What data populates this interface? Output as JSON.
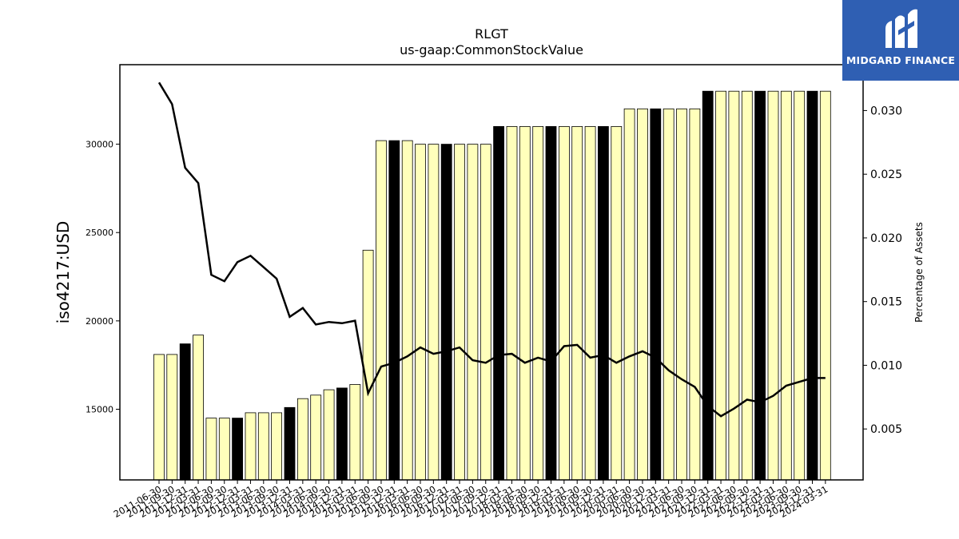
{
  "chart_data": {
    "type": "bar",
    "title": "RLGT",
    "subtitle": "us-gaap:CommonStockValue",
    "ylabel": "iso4217:USD",
    "y2label": "Percentage of Assets",
    "ylim": [
      11000,
      34500
    ],
    "y2lim": [
      0.001,
      0.0336
    ],
    "yticks": [
      15000,
      20000,
      25000,
      30000
    ],
    "y2ticks": [
      0.005,
      0.01,
      0.015,
      0.02,
      0.025,
      0.03
    ],
    "y2tick_labels": [
      "0.005",
      "0.010",
      "0.015",
      "0.020",
      "0.025",
      "0.030"
    ],
    "categories": [
      "2011-06-30",
      "2011-09-30",
      "2011-12-31",
      "2012-03-31",
      "2012-06-30",
      "2012-09-30",
      "2012-12-31",
      "2013-03-31",
      "2013-06-30",
      "2013-09-30",
      "2013-12-31",
      "2014-03-31",
      "2014-06-30",
      "2014-09-30",
      "2014-12-31",
      "2015-03-31",
      "2015-06-30",
      "2015-09-30",
      "2015-12-31",
      "2016-03-31",
      "2016-06-30",
      "2016-09-30",
      "2016-12-31",
      "2017-03-31",
      "2017-06-30",
      "2017-09-30",
      "2017-12-31",
      "2018-03-31",
      "2018-06-30",
      "2018-09-30",
      "2018-12-31",
      "2019-03-31",
      "2019-06-30",
      "2019-09-30",
      "2019-12-31",
      "2020-03-31",
      "2020-06-30",
      "2020-09-30",
      "2020-12-31",
      "2021-03-31",
      "2021-06-30",
      "2021-09-30",
      "2021-12-31",
      "2022-03-31",
      "2022-06-30",
      "2022-09-30",
      "2022-12-31",
      "2023-03-31",
      "2023-06-30",
      "2023-09-30",
      "2023-12-31",
      "2024-03-31"
    ],
    "visible_tick_labels": [
      "2011-06-30",
      "2011-09-30",
      "2011-12-31",
      "2012-03-31",
      "2012-06-30",
      "2012-09-30",
      "2012-12-31",
      "2013-03-31",
      "2013-06-30",
      "2013-09-30",
      "2013-12-31",
      "2014-03-31",
      "2014-06-30",
      "2014-09-30",
      "2014-12-31",
      "2015-03-31",
      "2015-06-30",
      "2015-09-30",
      "2015-12-31",
      "2016-03-31",
      "2016-06-30",
      "2016-09-30",
      "2016-12-31",
      "2017-03-31",
      "2017-06-30",
      "2017-09-30",
      "2017-12-31",
      "2018-03-31",
      "2018-06-30",
      "2018-09-30",
      "2018-12-31",
      "2019-03-31",
      "2019-06-30",
      "2019-09-30",
      "2019-12-31",
      "2020-03-31",
      "2020-06-30",
      "2020-09-30",
      "2020-12-31",
      "2021-03-31",
      "2021-06-30",
      "2021-09-30",
      "2021-12-31",
      "2022-03-31",
      "2022-06-30",
      "2022-09-30",
      "2022-12-31",
      "2023-03-31",
      "2023-06-30",
      "2023-09-30",
      "2023-12-31",
      "2024-03-31"
    ],
    "values": [
      18100,
      18100,
      18700,
      19200,
      14500,
      14500,
      14500,
      14800,
      14800,
      14800,
      15100,
      15600,
      15800,
      16100,
      16200,
      16400,
      24000,
      30200,
      30200,
      30200,
      30000,
      30000,
      30000,
      30000,
      30000,
      30000,
      31000,
      31000,
      31000,
      31000,
      31000,
      31000,
      31000,
      31000,
      31000,
      31000,
      32000,
      32000,
      32000,
      32000,
      32000,
      32000,
      33000,
      33000,
      33000,
      33000,
      33000,
      33000,
      33000,
      33000,
      33000,
      33000
    ],
    "highlighted": [
      false,
      false,
      true,
      false,
      false,
      false,
      true,
      false,
      false,
      false,
      true,
      false,
      false,
      false,
      true,
      false,
      false,
      false,
      true,
      false,
      false,
      false,
      true,
      false,
      false,
      false,
      true,
      false,
      false,
      false,
      true,
      false,
      false,
      false,
      true,
      false,
      false,
      false,
      true,
      false,
      false,
      false,
      true,
      false,
      false,
      false,
      true,
      false,
      false,
      false,
      true,
      false
    ],
    "line_values": [
      0.0322,
      0.0305,
      0.0255,
      0.0243,
      0.0171,
      0.0166,
      0.0181,
      0.0186,
      0.0177,
      0.0168,
      0.0138,
      0.0145,
      0.0132,
      0.0134,
      0.0133,
      0.0135,
      0.0078,
      0.0099,
      0.0102,
      0.0107,
      0.0114,
      0.0109,
      0.0111,
      0.0114,
      0.0104,
      0.0102,
      0.0108,
      0.0109,
      0.0102,
      0.0106,
      0.0103,
      0.0115,
      0.0116,
      0.0106,
      0.0108,
      0.0102,
      0.0107,
      0.0111,
      0.0106,
      0.0096,
      0.0089,
      0.0083,
      0.0068,
      0.006,
      0.0066,
      0.0073,
      0.0071,
      0.0076,
      0.0084,
      0.0087,
      0.009,
      0.009
    ],
    "colors": {
      "bar": "#ffffbb",
      "bar_highlight": "#000000",
      "line": "#000000"
    }
  },
  "logo": {
    "text": "MIDGARD FINANCE",
    "background": "#2f5fb3"
  }
}
